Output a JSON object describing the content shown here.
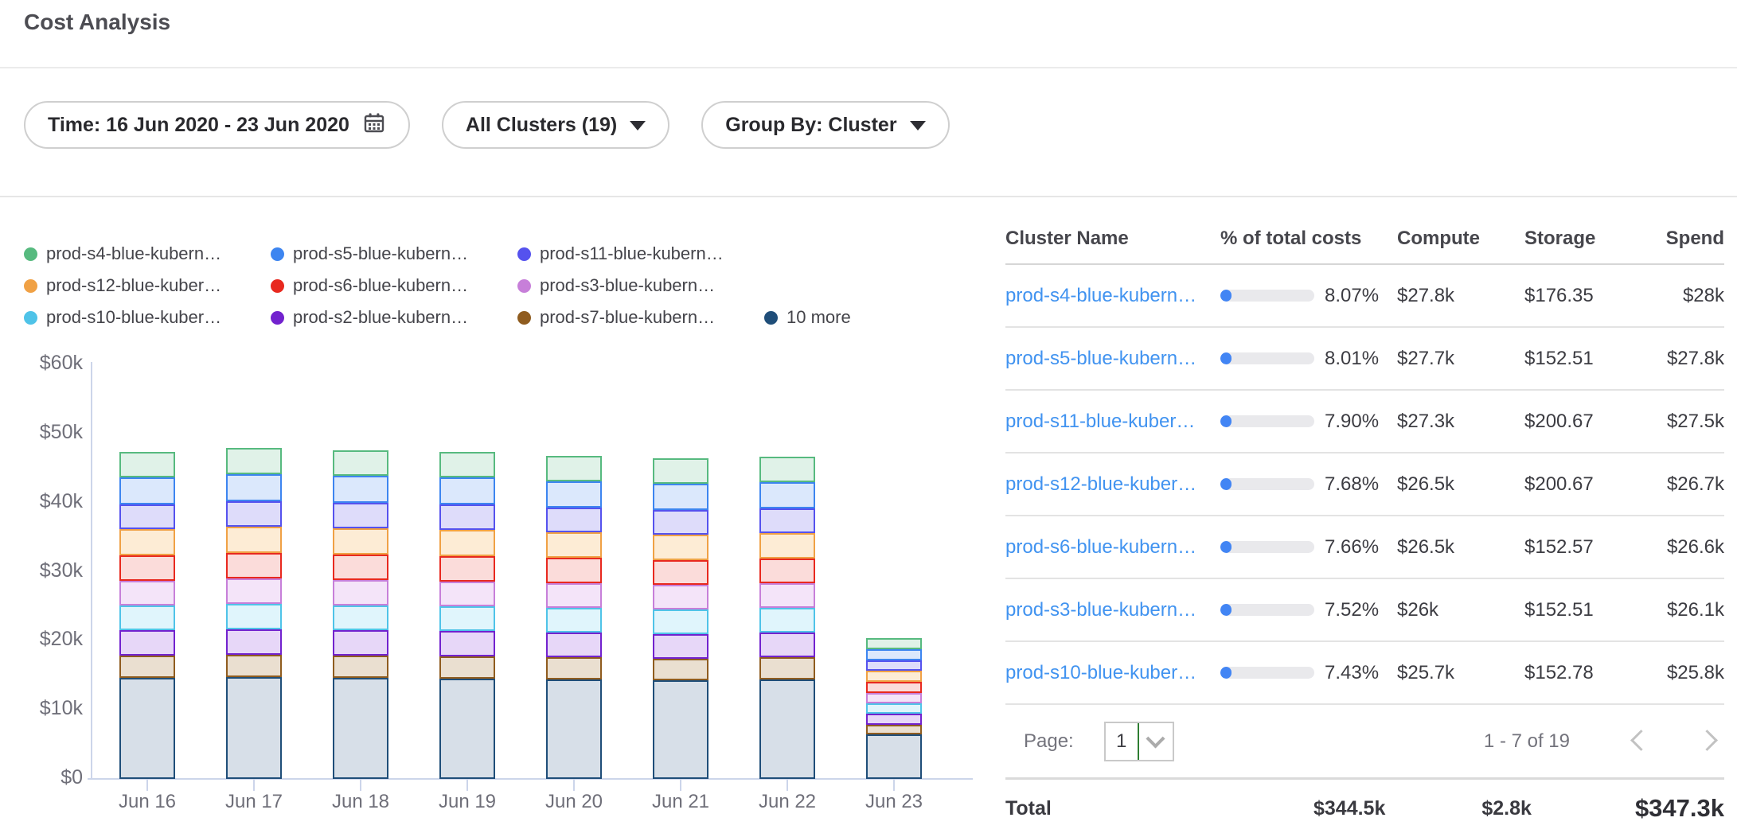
{
  "header": {
    "title": "Cost Analysis"
  },
  "filters": {
    "time_label": "Time: 16 Jun 2020 - 23 Jun 2020",
    "clusters_label": "All Clusters (19)",
    "group_by_label": "Group By: Cluster"
  },
  "legend": {
    "rows": [
      [
        {
          "label": "prod-s4-blue-kubern…",
          "color": "#57ba7f"
        },
        {
          "label": "prod-s5-blue-kubern…",
          "color": "#3d85f0"
        },
        {
          "label": "prod-s11-blue-kubern…",
          "color": "#5552ee"
        }
      ],
      [
        {
          "label": "prod-s12-blue-kuber…",
          "color": "#f0a145"
        },
        {
          "label": "prod-s6-blue-kubern…",
          "color": "#e8291f"
        },
        {
          "label": "prod-s3-blue-kubern…",
          "color": "#c77fd9"
        }
      ],
      [
        {
          "label": "prod-s10-blue-kuber…",
          "color": "#4fc3e8"
        },
        {
          "label": "prod-s2-blue-kubern…",
          "color": "#7222ce"
        },
        {
          "label": "prod-s7-blue-kubern…",
          "color": "#8f5c1f"
        },
        {
          "label": "10 more",
          "color": "#1f4e79"
        }
      ]
    ]
  },
  "chart_data": {
    "type": "bar",
    "stacked": true,
    "title": "",
    "xlabel": "",
    "ylabel": "",
    "unit": "thousand USD per day",
    "ylim": [
      0,
      60
    ],
    "grid": false,
    "legend_position": "top",
    "categories": [
      "Jun 16",
      "Jun 17",
      "Jun 18",
      "Jun 19",
      "Jun 20",
      "Jun 21",
      "Jun 22",
      "Jun 23"
    ],
    "y_ticks": [
      "$0",
      "$10k",
      "$20k",
      "$30k",
      "$40k",
      "$50k",
      "$60k"
    ],
    "series": [
      {
        "name": "10 more",
        "stroke": "#1f4e79",
        "fill": "#d7dfe8",
        "values": [
          14.6,
          14.7,
          14.6,
          14.5,
          14.4,
          14.3,
          14.4,
          6.5
        ]
      },
      {
        "name": "prod-s7-blue-kubern…",
        "stroke": "#8f5c1f",
        "fill": "#eadfd0",
        "values": [
          3.2,
          3.2,
          3.2,
          3.2,
          3.2,
          3.1,
          3.2,
          1.4
        ]
      },
      {
        "name": "prod-s2-blue-kubern…",
        "stroke": "#7222ce",
        "fill": "#e7d7f8",
        "values": [
          3.7,
          3.7,
          3.7,
          3.7,
          3.6,
          3.6,
          3.6,
          1.6
        ]
      },
      {
        "name": "prod-s10-blue-kuber…",
        "stroke": "#4fc3e8",
        "fill": "#e0f5fc",
        "values": [
          3.6,
          3.7,
          3.6,
          3.6,
          3.6,
          3.6,
          3.6,
          1.5
        ]
      },
      {
        "name": "prod-s3-blue-kubern…",
        "stroke": "#c77fd9",
        "fill": "#f4e4f9",
        "values": [
          3.6,
          3.7,
          3.7,
          3.6,
          3.6,
          3.6,
          3.6,
          1.5
        ]
      },
      {
        "name": "prod-s6-blue-kubern…",
        "stroke": "#e8291f",
        "fill": "#fbdcda",
        "values": [
          3.7,
          3.7,
          3.7,
          3.7,
          3.7,
          3.6,
          3.6,
          1.6
        ]
      },
      {
        "name": "prod-s12-blue-kuber…",
        "stroke": "#f0a145",
        "fill": "#fdecd5",
        "values": [
          3.8,
          3.8,
          3.8,
          3.8,
          3.7,
          3.7,
          3.7,
          1.6
        ]
      },
      {
        "name": "prod-s11-blue-kubern…",
        "stroke": "#5552ee",
        "fill": "#dedcfa",
        "values": [
          3.6,
          3.7,
          3.7,
          3.7,
          3.6,
          3.6,
          3.6,
          1.5
        ]
      },
      {
        "name": "prod-s5-blue-kubern…",
        "stroke": "#3d85f0",
        "fill": "#dbe8fc",
        "values": [
          3.9,
          3.9,
          3.9,
          3.9,
          3.8,
          3.8,
          3.8,
          1.6
        ]
      },
      {
        "name": "prod-s4-blue-kubern…",
        "stroke": "#57ba7f",
        "fill": "#e0f2e8",
        "values": [
          3.7,
          3.8,
          3.7,
          3.7,
          3.7,
          3.7,
          3.7,
          1.6
        ]
      }
    ]
  },
  "table": {
    "columns": [
      "Cluster Name",
      "% of total costs",
      "Compute",
      "Storage",
      "Spend"
    ],
    "rows": [
      {
        "name": "prod-s4-blue-kubern…",
        "pct": 8.07,
        "pct_label": "8.07%",
        "compute": "$27.8k",
        "storage": "$176.35",
        "spend": "$28k"
      },
      {
        "name": "prod-s5-blue-kubern…",
        "pct": 8.01,
        "pct_label": "8.01%",
        "compute": "$27.7k",
        "storage": "$152.51",
        "spend": "$27.8k"
      },
      {
        "name": "prod-s11-blue-kuber…",
        "pct": 7.9,
        "pct_label": "7.90%",
        "compute": "$27.3k",
        "storage": "$200.67",
        "spend": "$27.5k"
      },
      {
        "name": "prod-s12-blue-kuber…",
        "pct": 7.68,
        "pct_label": "7.68%",
        "compute": "$26.5k",
        "storage": "$200.67",
        "spend": "$26.7k"
      },
      {
        "name": "prod-s6-blue-kubern…",
        "pct": 7.66,
        "pct_label": "7.66%",
        "compute": "$26.5k",
        "storage": "$152.57",
        "spend": "$26.6k"
      },
      {
        "name": "prod-s3-blue-kubern…",
        "pct": 7.52,
        "pct_label": "7.52%",
        "compute": "$26k",
        "storage": "$152.51",
        "spend": "$26.1k"
      },
      {
        "name": "prod-s10-blue-kuber…",
        "pct": 7.43,
        "pct_label": "7.43%",
        "compute": "$25.7k",
        "storage": "$152.78",
        "spend": "$25.8k"
      }
    ],
    "pagination": {
      "page_label": "Page:",
      "page_value": "1",
      "range_label": "1 - 7 of 19"
    },
    "total": {
      "label": "Total",
      "compute": "$344.5k",
      "storage": "$2.8k",
      "spend": "$347.3k"
    }
  }
}
